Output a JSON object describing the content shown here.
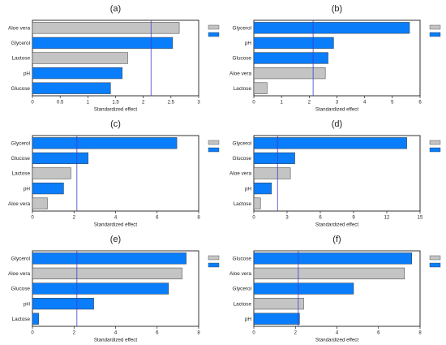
{
  "colors": {
    "positive": "#0a7dfa",
    "negative": "#c4c4c4",
    "bar_edge": "#3a3a3a",
    "reference_line": "#3d3dd6",
    "frame": "#000000"
  },
  "chart_data": [
    {
      "type": "bar",
      "orientation": "horizontal",
      "panel": "(a)",
      "xlabel": "Standardized effect",
      "xlim": [
        0,
        3
      ],
      "xticks": [
        0,
        0.5,
        1,
        1.5,
        2,
        2.5,
        3
      ],
      "reference_value": 2.14,
      "legend": "top-right",
      "bars": [
        {
          "label": "Aloe vera",
          "value": 2.65,
          "sign": "negative"
        },
        {
          "label": "Glycerol",
          "value": 2.53,
          "sign": "positive"
        },
        {
          "label": "Lactose",
          "value": 1.72,
          "sign": "negative"
        },
        {
          "label": "pH",
          "value": 1.62,
          "sign": "positive"
        },
        {
          "label": "Glucose",
          "value": 1.41,
          "sign": "positive"
        }
      ]
    },
    {
      "type": "bar",
      "orientation": "horizontal",
      "panel": "(b)",
      "xlabel": "Standardized effect",
      "xlim": [
        0,
        6
      ],
      "xticks": [
        0,
        1,
        2,
        3,
        4,
        5,
        6
      ],
      "reference_value": 2.14,
      "legend": "top-right",
      "bars": [
        {
          "label": "Glycerol",
          "value": 5.62,
          "sign": "positive"
        },
        {
          "label": "pH",
          "value": 2.88,
          "sign": "positive"
        },
        {
          "label": "Glucose",
          "value": 2.68,
          "sign": "positive"
        },
        {
          "label": "Aloe vera",
          "value": 2.58,
          "sign": "negative"
        },
        {
          "label": "Lactose",
          "value": 0.48,
          "sign": "negative"
        }
      ]
    },
    {
      "type": "bar",
      "orientation": "horizontal",
      "panel": "(c)",
      "xlabel": "Standardized effect",
      "xlim": [
        0,
        8
      ],
      "xticks": [
        0,
        2,
        4,
        6,
        8
      ],
      "reference_value": 2.14,
      "legend": "top-right",
      "bars": [
        {
          "label": "Glycerol",
          "value": 6.95,
          "sign": "positive"
        },
        {
          "label": "Glucose",
          "value": 2.68,
          "sign": "positive"
        },
        {
          "label": "Lactose",
          "value": 1.85,
          "sign": "negative"
        },
        {
          "label": "pH",
          "value": 1.5,
          "sign": "positive"
        },
        {
          "label": "Aloe vera",
          "value": 0.72,
          "sign": "negative"
        }
      ]
    },
    {
      "type": "bar",
      "orientation": "horizontal",
      "panel": "(d)",
      "xlabel": "Standardized effect",
      "xlim": [
        0,
        15
      ],
      "xticks": [
        0,
        3,
        6,
        9,
        12,
        15
      ],
      "reference_value": 2.14,
      "legend": "top-right",
      "bars": [
        {
          "label": "Glycerol",
          "value": 13.8,
          "sign": "positive"
        },
        {
          "label": "Glucose",
          "value": 3.7,
          "sign": "positive"
        },
        {
          "label": "Aloe vera",
          "value": 3.3,
          "sign": "negative"
        },
        {
          "label": "pH",
          "value": 1.6,
          "sign": "positive"
        },
        {
          "label": "Lactose",
          "value": 0.6,
          "sign": "negative"
        }
      ]
    },
    {
      "type": "bar",
      "orientation": "horizontal",
      "panel": "(e)",
      "xlabel": "Standardized effect",
      "xlim": [
        0,
        8
      ],
      "xticks": [
        0,
        2,
        4,
        6,
        8
      ],
      "reference_value": 2.14,
      "legend": "top-right",
      "bars": [
        {
          "label": "Glycerol",
          "value": 7.4,
          "sign": "positive"
        },
        {
          "label": "Aloe vera",
          "value": 7.2,
          "sign": "negative"
        },
        {
          "label": "Glucose",
          "value": 6.55,
          "sign": "positive"
        },
        {
          "label": "pH",
          "value": 2.95,
          "sign": "positive"
        },
        {
          "label": "Lactose",
          "value": 0.3,
          "sign": "positive"
        }
      ]
    },
    {
      "type": "bar",
      "orientation": "horizontal",
      "panel": "(f)",
      "xlabel": "Standardized effect",
      "xlim": [
        0,
        8
      ],
      "xticks": [
        0,
        2,
        4,
        6,
        8
      ],
      "reference_value": 2.14,
      "legend": "top-right",
      "bars": [
        {
          "label": "Glucose",
          "value": 7.6,
          "sign": "positive"
        },
        {
          "label": "Aloe vera",
          "value": 7.25,
          "sign": "negative"
        },
        {
          "label": "Glycerol",
          "value": 4.8,
          "sign": "positive"
        },
        {
          "label": "Lactose",
          "value": 2.4,
          "sign": "negative"
        },
        {
          "label": "pH",
          "value": 2.2,
          "sign": "positive"
        }
      ]
    }
  ]
}
